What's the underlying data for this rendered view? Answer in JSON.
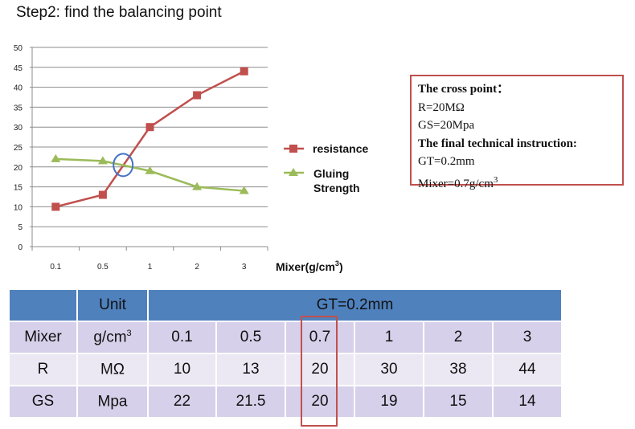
{
  "title": "Step2: find the balancing point",
  "chart_data": {
    "type": "line",
    "categories": [
      "0.1",
      "0.5",
      "1",
      "2",
      "3"
    ],
    "series": [
      {
        "name": "resistance",
        "values": [
          10,
          13,
          30,
          38,
          44
        ],
        "color": "#c0504d",
        "marker": "square"
      },
      {
        "name": "Gluing Strength",
        "values": [
          22,
          21.5,
          19,
          15,
          14
        ],
        "color": "#9bbb59",
        "marker": "triangle"
      }
    ],
    "xlabel": "Mixer(g/cm",
    "xlabel_sup": "3",
    "xlabel_end": ")",
    "ylabel": "",
    "ylim": [
      0,
      50
    ],
    "yticks": [
      0,
      5,
      10,
      15,
      20,
      25,
      30,
      35,
      40,
      45,
      50
    ],
    "grid": true,
    "legend": "right",
    "annotation": {
      "type": "circle",
      "x_between": [
        "0.5",
        "1"
      ],
      "y": 20.5,
      "color": "#4472c4"
    }
  },
  "infobox": {
    "line1": "The cross point：",
    "line2": "R=20MΩ",
    "line3": "GS=20Mpa",
    "line4": "The final technical instruction:",
    "line5": "GT=0.2mm",
    "line6": "Mixer=0.7g/cm",
    "line6_sup": "3"
  },
  "table": {
    "header_unit": "Unit",
    "header_gt": "GT=0.2mm",
    "rows": [
      {
        "label": "Mixer",
        "unit": "g/cm",
        "unit_sup": "3",
        "values": [
          "0.1",
          "0.5",
          "0.7",
          "1",
          "2",
          "3"
        ]
      },
      {
        "label": "R",
        "unit": "MΩ",
        "unit_sup": "",
        "values": [
          "10",
          "13",
          "20",
          "30",
          "38",
          "44"
        ]
      },
      {
        "label": "GS",
        "unit": "Mpa",
        "unit_sup": "",
        "values": [
          "22",
          "21.5",
          "20",
          "19",
          "15",
          "14"
        ]
      }
    ]
  }
}
